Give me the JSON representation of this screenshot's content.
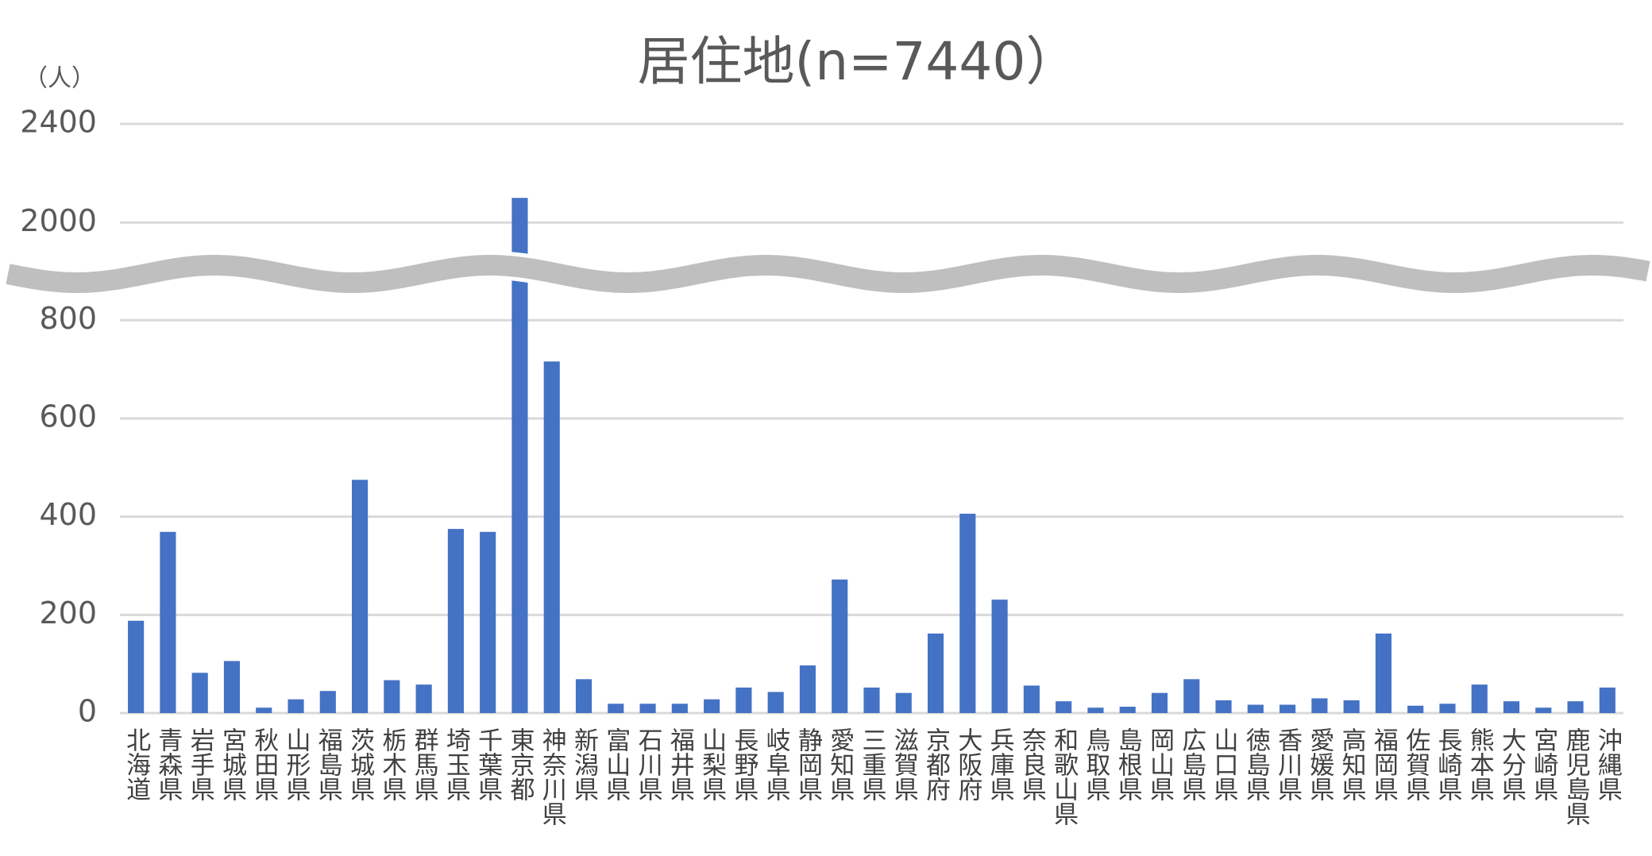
{
  "chart_data": {
    "type": "bar",
    "title": "居住地(n=7440）",
    "ylabel": "（人）",
    "categories": [
      "北海道",
      "青森県",
      "岩手県",
      "宮城県",
      "秋田県",
      "山形県",
      "福島県",
      "茨城県",
      "栃木県",
      "群馬県",
      "埼玉県",
      "千葉県",
      "東京都",
      "神奈川県",
      "新潟県",
      "富山県",
      "石川県",
      "福井県",
      "山梨県",
      "長野県",
      "岐阜県",
      "静岡県",
      "愛知県",
      "三重県",
      "滋賀県",
      "京都府",
      "大阪府",
      "兵庫県",
      "奈良県",
      "和歌山県",
      "鳥取県",
      "島根県",
      "岡山県",
      "広島県",
      "山口県",
      "徳島県",
      "香川県",
      "愛媛県",
      "高知県",
      "福岡県",
      "佐賀県",
      "長崎県",
      "熊本県",
      "大分県",
      "宮崎県",
      "鹿児島県",
      "沖縄県"
    ],
    "values": [
      188,
      369,
      82,
      106,
      11,
      28,
      45,
      475,
      67,
      58,
      375,
      369,
      2100,
      716,
      69,
      19,
      19,
      19,
      28,
      52,
      43,
      97,
      272,
      52,
      41,
      162,
      406,
      231,
      56,
      24,
      11,
      13,
      41,
      69,
      26,
      17,
      17,
      30,
      26,
      162,
      15,
      19,
      58,
      24,
      11,
      24,
      52
    ],
    "color": "#4472c4",
    "ylim": [
      0,
      2400
    ],
    "axis_break": [
      870,
      1840
    ],
    "yticks": [
      0,
      200,
      400,
      600,
      800,
      2000,
      2400
    ],
    "grid": true
  }
}
